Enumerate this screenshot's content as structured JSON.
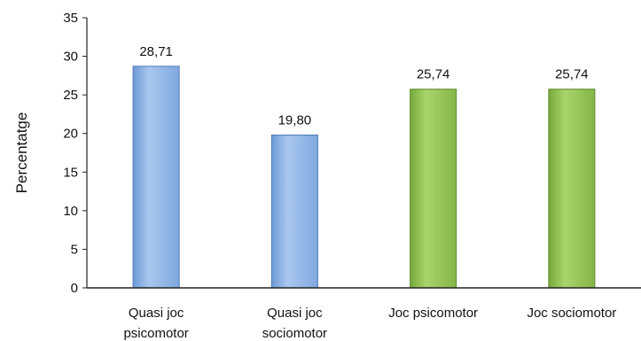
{
  "chart_data": {
    "type": "bar",
    "title": "",
    "xlabel": "",
    "ylabel": "Percentatge",
    "categories": [
      [
        "Quasi joc",
        "psicomotor"
      ],
      [
        "Quasi joc",
        "sociomotor"
      ],
      [
        "Joc psicomotor"
      ],
      [
        "Joc sociomotor"
      ]
    ],
    "values": [
      28.71,
      19.8,
      25.74,
      25.74
    ],
    "data_labels": [
      "28,71",
      "19,80",
      "25,74",
      "25,74"
    ],
    "ylim": [
      0,
      35
    ],
    "yticks": [
      0,
      5,
      10,
      15,
      20,
      25,
      30,
      35
    ],
    "grid": false,
    "legend": "none",
    "colors": [
      "#8db3e6",
      "#8db3e6",
      "#8fbf4f",
      "#8fbf4f"
    ],
    "edge_colors": [
      "#4f79b3",
      "#4f79b3",
      "#5e8a2c",
      "#5e8a2c"
    ]
  }
}
